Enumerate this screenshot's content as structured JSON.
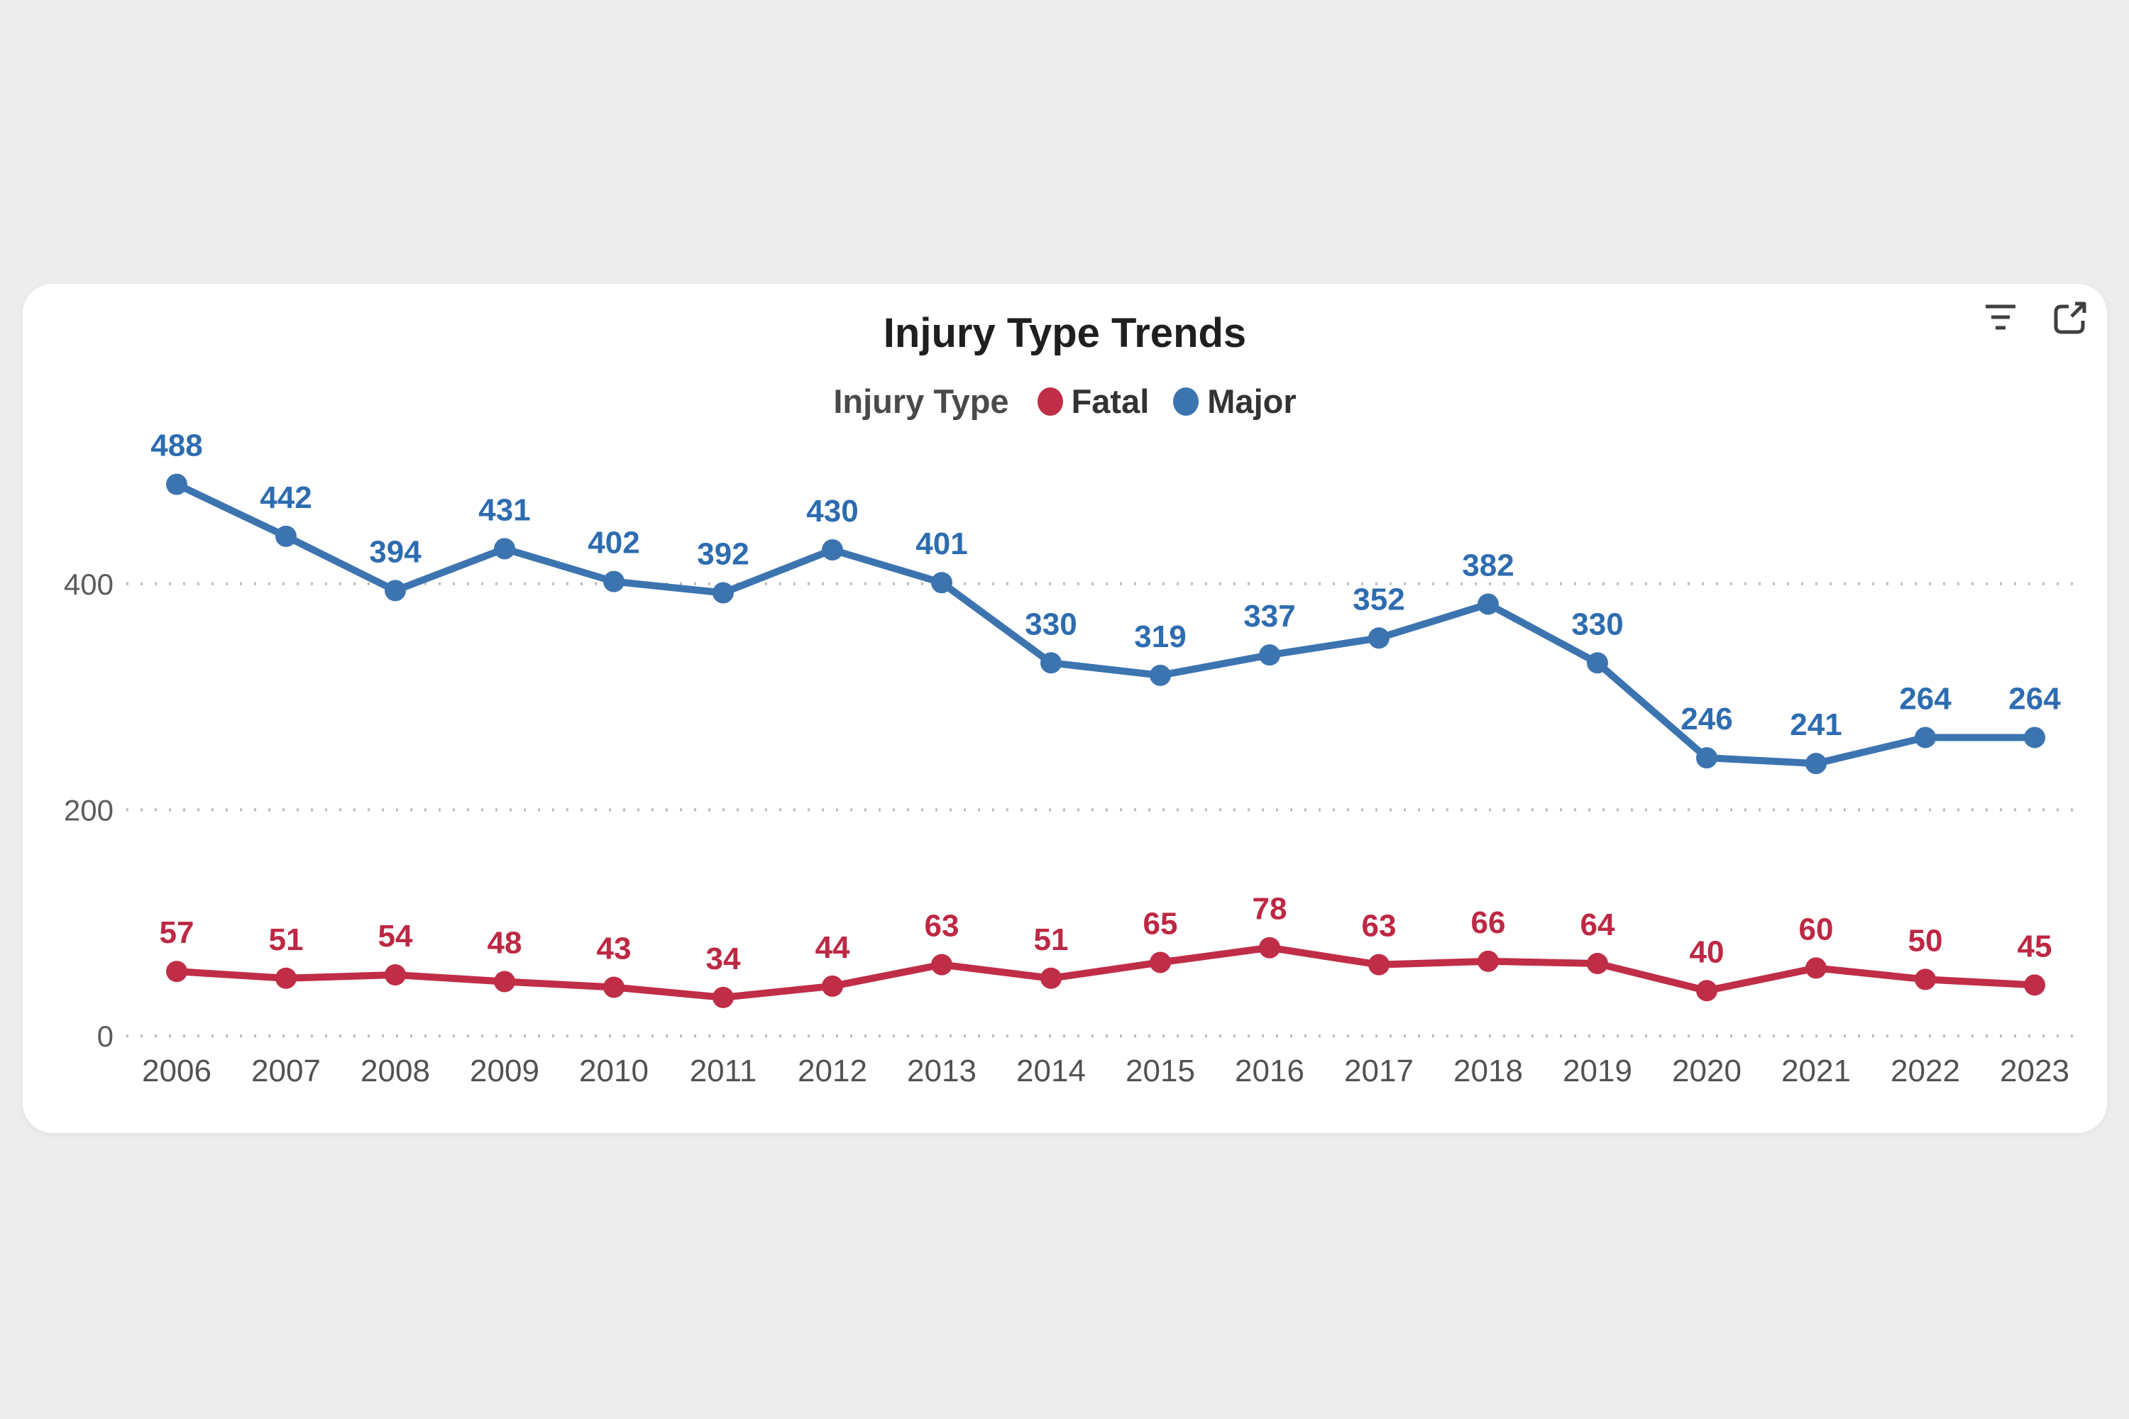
{
  "window": {
    "background_color": "#ededed",
    "card_color": "#ffffff"
  },
  "header": {
    "title": "Injury Type Trends",
    "icons": [
      {
        "name": "filter-icon"
      },
      {
        "name": "popout-icon"
      }
    ]
  },
  "legend": {
    "title": "Injury Type",
    "items": [
      {
        "label": "Fatal",
        "color": "#C02D47"
      },
      {
        "label": "Major",
        "color": "#3C74B0"
      }
    ]
  },
  "chart_data": {
    "type": "line",
    "title": "Injury Type Trends",
    "legend_title": "Injury Type",
    "legend_position": "top-center",
    "xlabel": "",
    "ylabel": "",
    "x": [
      2006,
      2007,
      2008,
      2009,
      2010,
      2011,
      2012,
      2013,
      2014,
      2015,
      2016,
      2017,
      2018,
      2019,
      2020,
      2021,
      2022,
      2023
    ],
    "series": [
      {
        "name": "Major",
        "color": "#3C74B0",
        "label_color": "#2E6CB0",
        "values": [
          488,
          442,
          394,
          431,
          402,
          392,
          430,
          401,
          330,
          319,
          337,
          352,
          382,
          330,
          246,
          241,
          264,
          264
        ]
      },
      {
        "name": "Fatal",
        "color": "#C02D47",
        "label_color": "#BD2843",
        "values": [
          57,
          51,
          54,
          48,
          43,
          34,
          44,
          63,
          51,
          65,
          78,
          63,
          66,
          64,
          40,
          60,
          50,
          45
        ]
      }
    ],
    "y_ticks": [
      0,
      200,
      400
    ],
    "ylim": [
      0,
      520
    ],
    "grid": "dotted-horizontal",
    "data_labels": true
  }
}
